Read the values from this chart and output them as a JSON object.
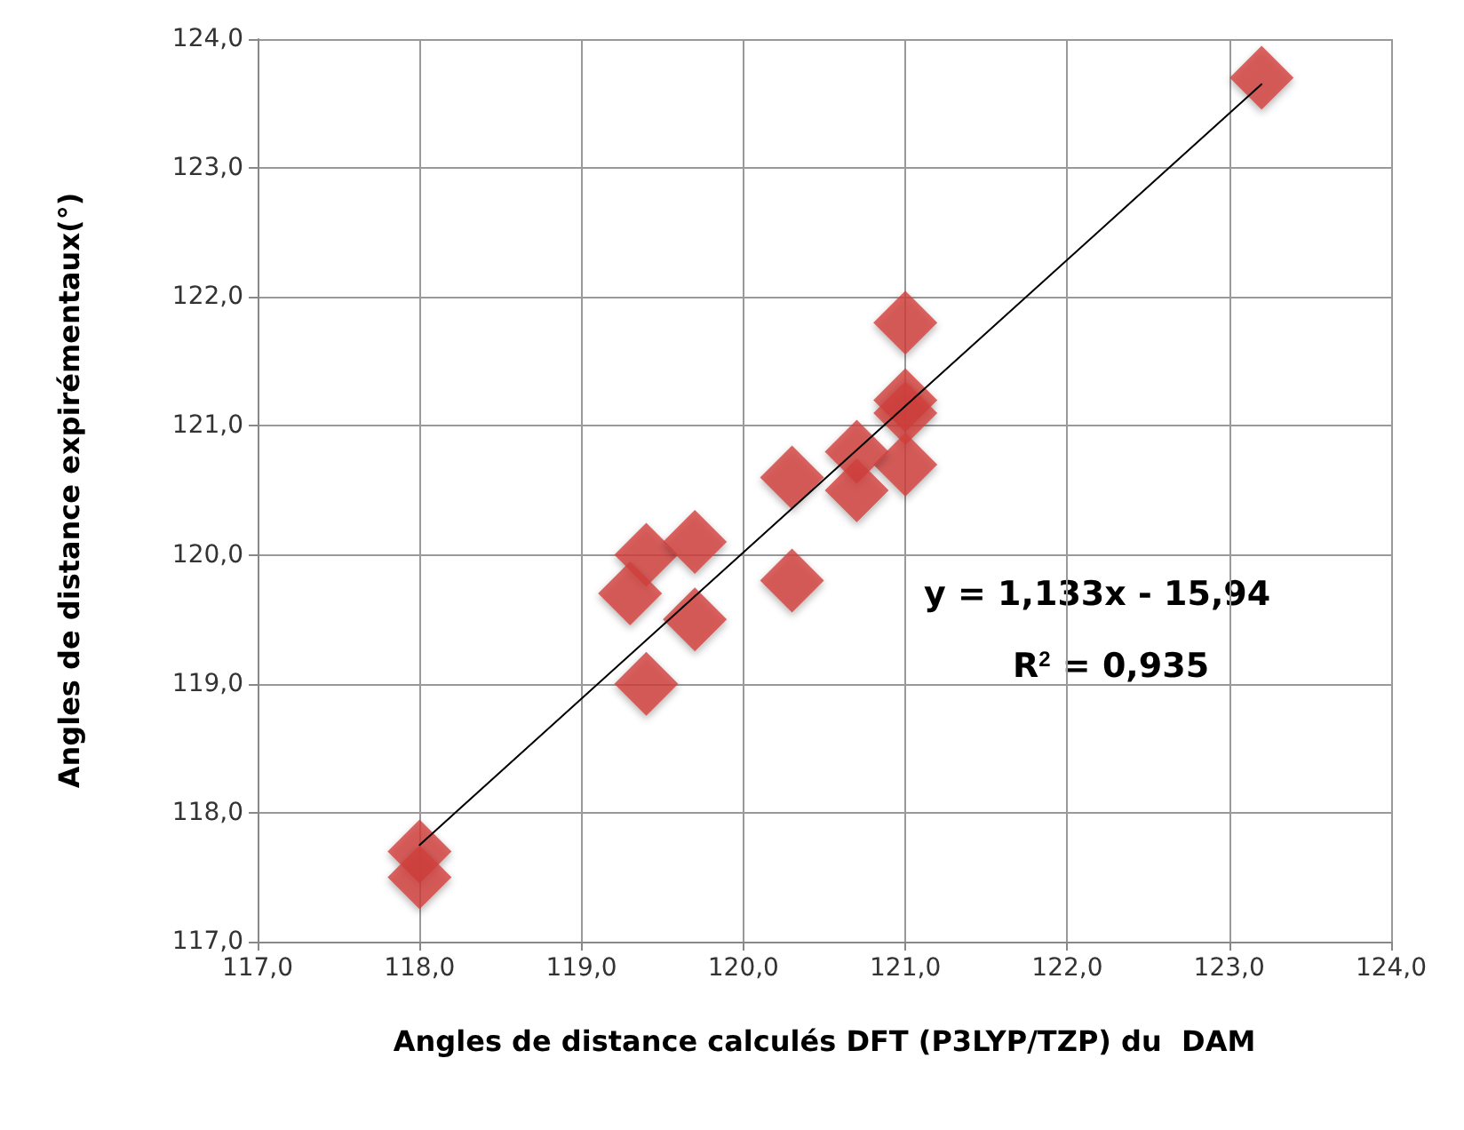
{
  "chart_data": {
    "type": "scatter",
    "xlabel": "Angles de distance calculés DFT (P3LYP/TZP) du  DAM",
    "ylabel": "Angles de distance expirémentaux(°)",
    "annotations": [
      "y = 1,133x - 15,94",
      "R$^{2}$ = 0,935"
    ],
    "marker": "diamond",
    "grid": true,
    "series": [
      {
        "color": "#d13f3c",
        "x": [
          118.0,
          118.0,
          119.4,
          119.7,
          119.3,
          119.7,
          119.4,
          120.3,
          120.3,
          123.2,
          121.0,
          121.0,
          121.0,
          121.0,
          120.7,
          120.7
        ],
        "values": [
          117.7,
          117.5,
          120.0,
          120.1,
          119.7,
          119.5,
          119.0,
          120.6,
          119.8,
          123.7,
          121.8,
          121.2,
          121.1,
          120.7,
          120.8,
          120.5
        ]
      },
      {
        "type": "line",
        "color": "#000000",
        "marker": "none",
        "x": [
          118.0,
          123.2
        ],
        "values": [
          117.75,
          123.65
        ]
      }
    ],
    "xlim": [
      117,
      124
    ],
    "xticks": [
      {
        "value": 117,
        "label": "117,0"
      },
      {
        "value": 118,
        "label": "118,0"
      },
      {
        "value": 119,
        "label": "119,0"
      },
      {
        "value": 120,
        "label": "120,0"
      },
      {
        "value": 121,
        "label": "121,0"
      },
      {
        "value": 122,
        "label": "122,0"
      },
      {
        "value": 123,
        "label": "123,0"
      },
      {
        "value": 124,
        "label": "124,0"
      }
    ],
    "ylim": [
      117,
      124
    ],
    "yticks": [
      {
        "value": 117,
        "label": "117,0"
      },
      {
        "value": 118,
        "label": "118,0"
      },
      {
        "value": 119,
        "label": "119,0"
      },
      {
        "value": 120,
        "label": "120,0"
      },
      {
        "value": 121,
        "label": "121,0"
      },
      {
        "value": 122,
        "label": "122,0"
      },
      {
        "value": 123,
        "label": "123,0"
      },
      {
        "value": 124,
        "label": "124,0"
      }
    ]
  }
}
